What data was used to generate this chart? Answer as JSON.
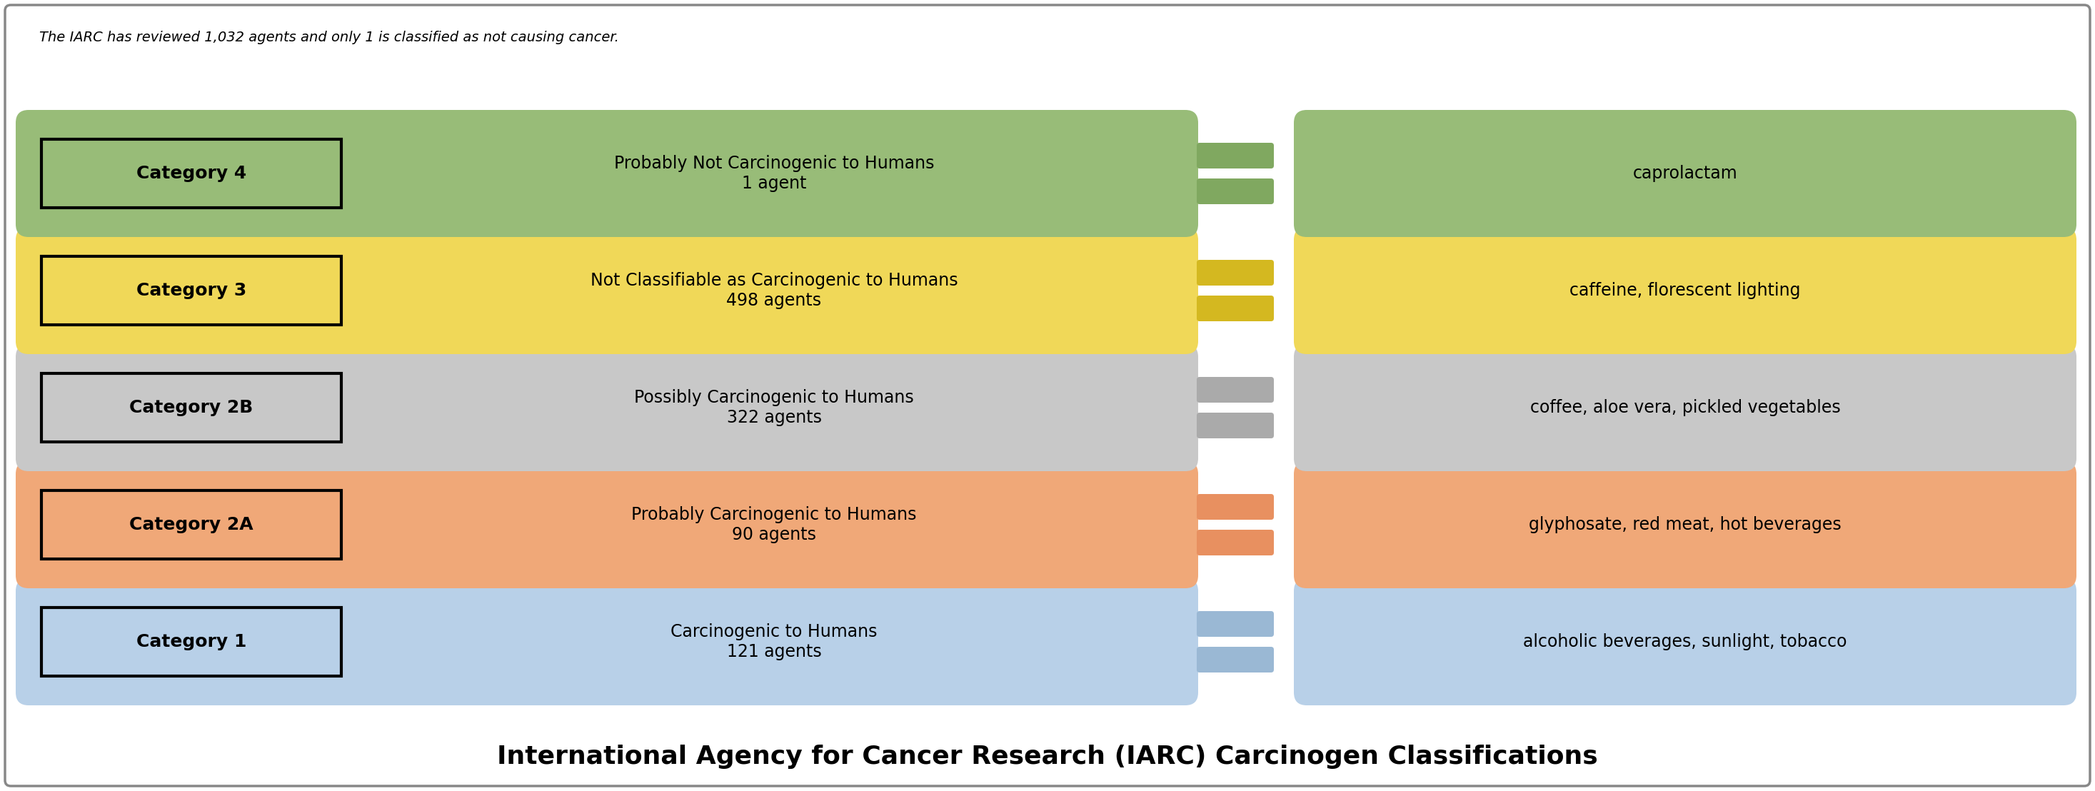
{
  "title": "International Agency for Cancer Research (IARC) Carcinogen Classifications",
  "title_fontsize": 26,
  "footer": "The IARC has reviewed 1,032 agents and only 1 is classified as not causing cancer.",
  "footer_fontsize": 14,
  "background_color": "#ffffff",
  "border_color": "#888888",
  "rows": [
    {
      "category": "Category 1",
      "description": "Carcinogenic to Humans\n121 agents",
      "examples": "alcoholic beverages, sunlight, tobacco",
      "bg_color": "#b8d0e8",
      "label_bg_color": "#b8d0e8",
      "label_border_color": "#000000",
      "eq_color": "#9ab8d4"
    },
    {
      "category": "Category 2A",
      "description": "Probably Carcinogenic to Humans\n90 agents",
      "examples": "glyphosate, red meat, hot beverages",
      "bg_color": "#f0a878",
      "label_bg_color": "#f0a878",
      "label_border_color": "#000000",
      "eq_color": "#e89060"
    },
    {
      "category": "Category 2B",
      "description": "Possibly Carcinogenic to Humans\n322 agents",
      "examples": "coffee, aloe vera, pickled vegetables",
      "bg_color": "#c8c8c8",
      "label_bg_color": "#c8c8c8",
      "label_border_color": "#000000",
      "eq_color": "#aaaaaa"
    },
    {
      "category": "Category 3",
      "description": "Not Classifiable as Carcinogenic to Humans\n498 agents",
      "examples": "caffeine, florescent lighting",
      "bg_color": "#f0d858",
      "label_bg_color": "#f0d858",
      "label_border_color": "#000000",
      "eq_color": "#d4b820"
    },
    {
      "category": "Category 4",
      "description": "Probably Not Carcinogenic to Humans\n1 agent",
      "examples": "caprolactam",
      "bg_color": "#98bc78",
      "label_bg_color": "#98bc78",
      "label_border_color": "#000000",
      "eq_color": "#80a860"
    }
  ]
}
